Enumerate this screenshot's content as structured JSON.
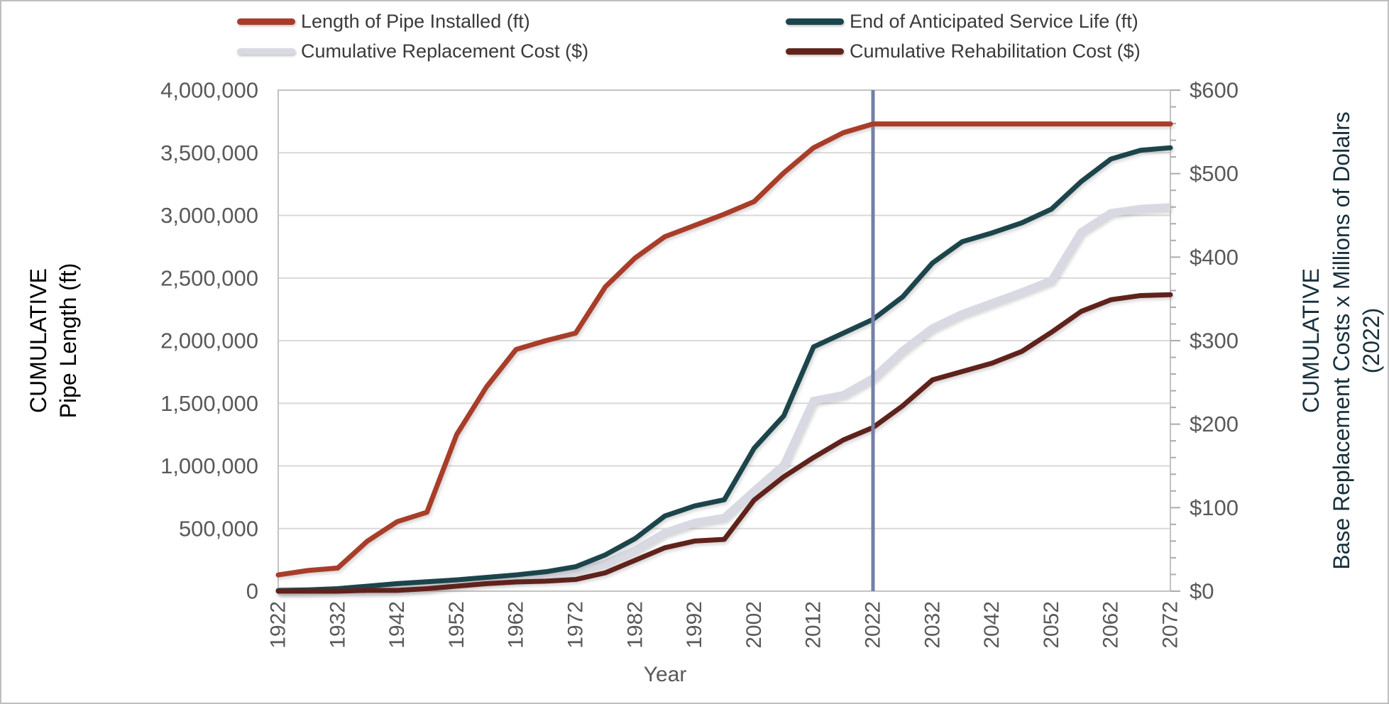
{
  "window": {
    "title": "Cumulative pipe installation and renewal cost forecast chart"
  },
  "legend": {
    "position": "top",
    "columns": 2
  },
  "chart_data": {
    "type": "line",
    "x": [
      1922,
      1927,
      1932,
      1937,
      1942,
      1947,
      1952,
      1957,
      1962,
      1967,
      1972,
      1977,
      1982,
      1987,
      1992,
      1997,
      2002,
      2007,
      2012,
      2017,
      2022,
      2027,
      2032,
      2037,
      2042,
      2047,
      2052,
      2057,
      2062,
      2067,
      2072
    ],
    "x_axis": {
      "title": "Year",
      "tick_values": [
        1922,
        1932,
        1942,
        1952,
        1962,
        1972,
        1982,
        1992,
        2002,
        2012,
        2022,
        2032,
        2042,
        2052,
        2062,
        2072
      ],
      "tick_labels": [
        "1922",
        "1932",
        "1942",
        "1952",
        "1962",
        "1972",
        "1982",
        "1992",
        "2002",
        "2012",
        "2022",
        "2032",
        "2042",
        "2052",
        "2062",
        "2072"
      ],
      "range": [
        1922,
        2072
      ]
    },
    "y_axis_left": {
      "title_lines": [
        "CUMULATIVE",
        "Pipe Length (ft)"
      ],
      "range": [
        0,
        4000000
      ],
      "tick_values": [
        0,
        500000,
        1000000,
        1500000,
        2000000,
        2500000,
        3000000,
        3500000,
        4000000
      ],
      "tick_labels": [
        "0",
        "500,000",
        "1,000,000",
        "1,500,000",
        "2,000,000",
        "2,500,000",
        "3,000,000",
        "3,500,000",
        "4,000,000"
      ]
    },
    "y_axis_right": {
      "title_lines": [
        "CUMULATIVE",
        "Base Replacement Costs x Millions of Dolalrs",
        "(2022)"
      ],
      "range": [
        0,
        600
      ],
      "tick_values": [
        0,
        100,
        200,
        300,
        400,
        500,
        600
      ],
      "tick_labels": [
        "$0",
        "$100",
        "$200",
        "$300",
        "$400",
        "$500",
        "$600"
      ],
      "minor_tick_step": 20
    },
    "grid": "horizontal",
    "series": [
      {
        "name": "Length of Pipe Installed (ft)",
        "axis": "left",
        "color": "#a83c2b",
        "stroke_width": 7,
        "values": [
          130000,
          165000,
          185000,
          400000,
          555000,
          630000,
          1250000,
          1630000,
          1930000,
          2000000,
          2060000,
          2430000,
          2660000,
          2830000,
          2920000,
          3010000,
          3110000,
          3340000,
          3540000,
          3660000,
          3730000,
          3730000,
          3730000,
          3730000,
          3730000,
          3730000,
          3730000,
          3730000,
          3730000,
          3730000,
          3730000
        ]
      },
      {
        "name": "End of Anticipated Service Life (ft)",
        "axis": "left",
        "color": "#1b454c",
        "stroke_width": 7,
        "values": [
          5000,
          10000,
          20000,
          40000,
          60000,
          75000,
          90000,
          110000,
          130000,
          155000,
          195000,
          290000,
          420000,
          600000,
          680000,
          730000,
          1140000,
          1400000,
          1950000,
          2060000,
          2170000,
          2350000,
          2620000,
          2790000,
          2860000,
          2940000,
          3050000,
          3270000,
          3450000,
          3520000,
          3540000
        ]
      },
      {
        "name": "Cumulative Replacement Cost ($)",
        "axis": "right",
        "color": "#d8d9e2",
        "stroke_width": 11,
        "values": [
          0,
          0,
          1,
          1,
          2,
          4,
          10,
          13,
          15,
          19,
          24,
          33,
          49,
          70,
          82,
          88,
          120,
          151,
          228,
          235,
          255,
          288,
          315,
          332,
          345,
          358,
          372,
          430,
          453,
          458,
          460
        ]
      },
      {
        "name": "Cumulative Rehabilitation Cost ($)",
        "axis": "right",
        "color": "#61241d",
        "stroke_width": 7,
        "values": [
          0,
          0,
          0,
          1,
          1,
          3,
          6,
          9,
          11,
          12,
          14,
          22,
          37,
          52,
          60,
          62,
          109,
          137,
          160,
          181,
          196,
          222,
          253,
          263,
          273,
          287,
          310,
          335,
          349,
          354,
          355
        ]
      }
    ],
    "annotations": {
      "vertical_line": {
        "x": 2022,
        "color": "#757fa7",
        "stroke_width": 5
      }
    },
    "style": {
      "gridline_color": "#d9d9d9",
      "plot_border_color": "#c3c3c3",
      "tick_label_color": "#595959",
      "left_title_color": "#000000",
      "right_title_color": "#17303c",
      "x_title_color": "#595959"
    }
  }
}
